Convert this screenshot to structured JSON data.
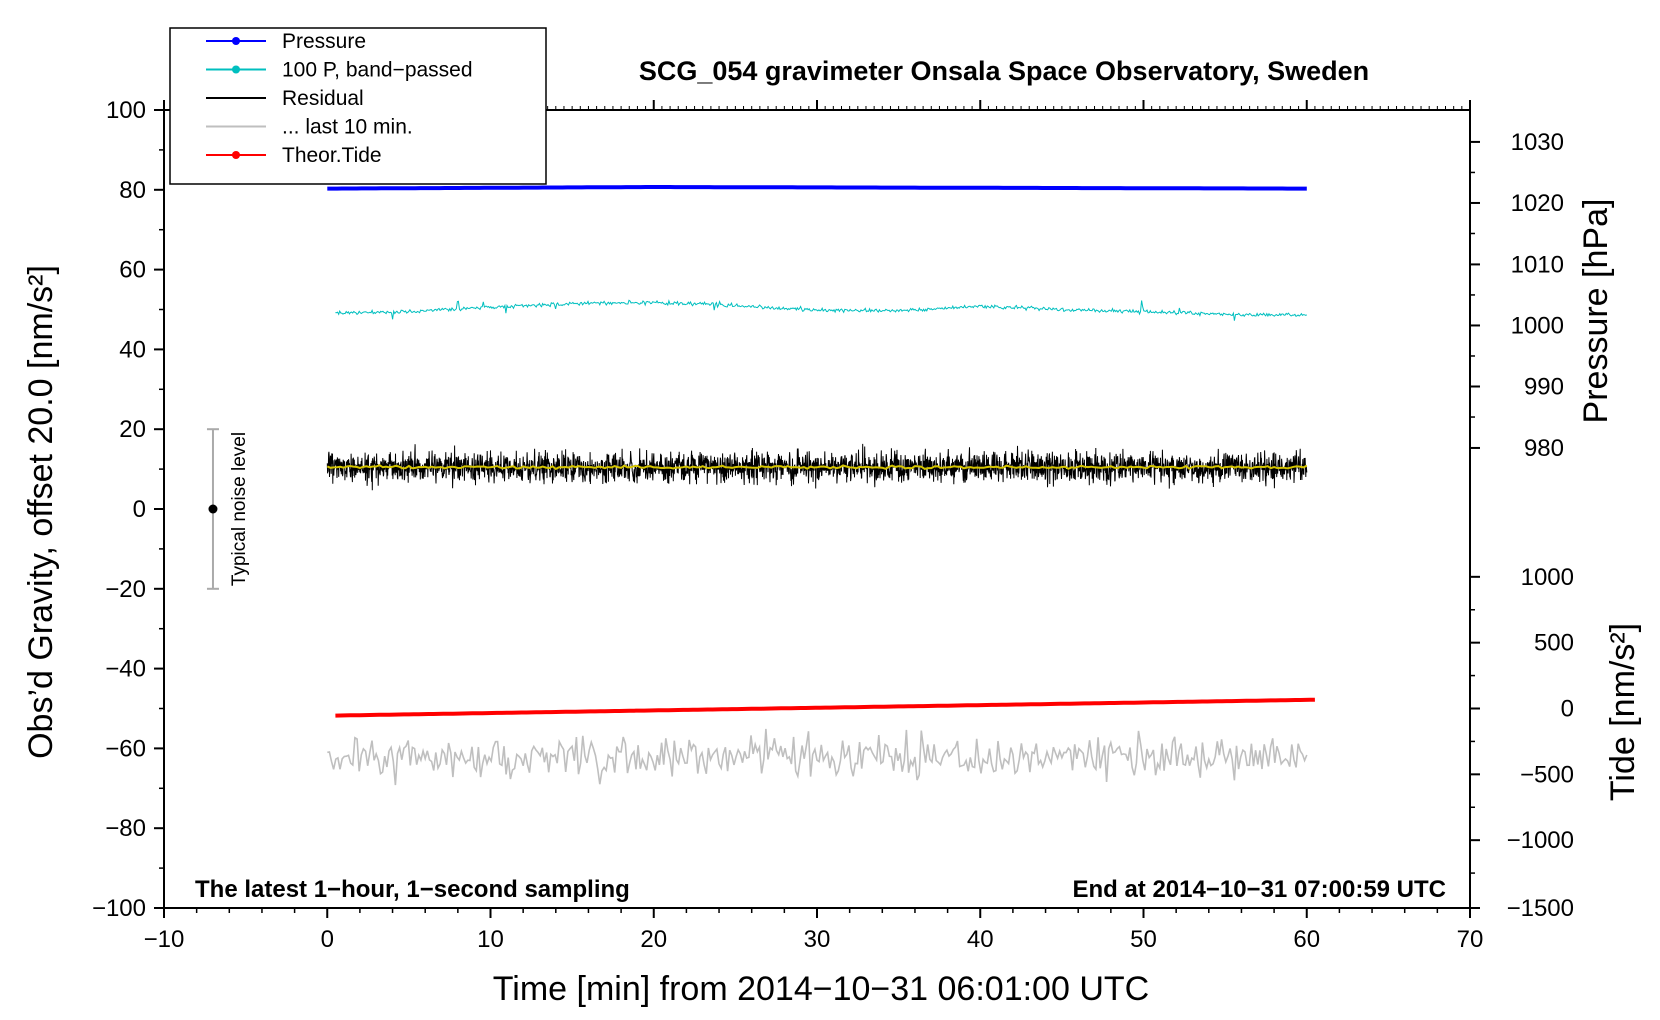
{
  "chart_data": {
    "type": "line",
    "title": "SCG_054 gravimeter Onsala Space Observatory, Sweden",
    "xlabel": "Time [min] from 2014−10−31 06:01:00 UTC",
    "ylabel_left": "Obs’d Gravity, offset 20.0 [nm/s²]",
    "ylabel_right_pressure": "Pressure [hPa]",
    "ylabel_right_tide": "Tide [nm/s²]",
    "footer_left": "The latest 1−hour, 1−second sampling",
    "footer_right": "End at 2014−10−31 07:00:59 UTC",
    "noise_label": "Typical noise level",
    "noise_bar": {
      "x": -7,
      "center": 0,
      "low": -20,
      "high": 20
    },
    "xlim": [
      -10,
      70
    ],
    "ylim": [
      -100,
      100
    ],
    "x_ticks": [
      -10,
      0,
      10,
      20,
      30,
      40,
      50,
      60,
      70
    ],
    "x_tick_labels": [
      "−10",
      "0",
      "10",
      "20",
      "30",
      "40",
      "50",
      "60",
      "70"
    ],
    "y_ticks": [
      -100,
      -80,
      -60,
      -40,
      -20,
      0,
      20,
      40,
      60,
      80,
      100
    ],
    "y_tick_labels": [
      "−100",
      "−80",
      "−60",
      "−40",
      "−20",
      "0",
      "20",
      "40",
      "60",
      "80",
      "100"
    ],
    "pressure_ticks": [
      {
        "label": "1030",
        "y": 92
      },
      {
        "label": "1020",
        "y": 76.7
      },
      {
        "label": "1010",
        "y": 61.3
      },
      {
        "label": "1000",
        "y": 46
      },
      {
        "label": "990",
        "y": 30.7
      },
      {
        "label": "980",
        "y": 15.3
      }
    ],
    "tide_ticks": [
      {
        "label": "1000",
        "y": -17
      },
      {
        "label": "500",
        "y": -33.5
      },
      {
        "label": "0",
        "y": -50
      },
      {
        "label": "−500",
        "y": -66.5
      },
      {
        "label": "−1000",
        "y": -83
      },
      {
        "label": "−1500",
        "y": -100
      }
    ],
    "legend": [
      {
        "label": "Pressure",
        "color": "#0000ff",
        "marker": true
      },
      {
        "label": "100 P, band−passed",
        "color": "#00bfbf",
        "marker": true
      },
      {
        "label": "Residual",
        "color": "#000000",
        "marker": false
      },
      {
        "label": "... last 10 min.",
        "color": "#bfbfbf",
        "marker": false
      },
      {
        "label": "Theor.Tide",
        "color": "#ff0000",
        "marker": true
      }
    ],
    "series": [
      {
        "name": "Pressure",
        "color": "#0000ff",
        "x": [
          0,
          10,
          20,
          30,
          40,
          50,
          60
        ],
        "values": [
          80.3,
          80.5,
          80.7,
          80.6,
          80.5,
          80.4,
          80.3
        ]
      },
      {
        "name": "100 P, band−passed",
        "color": "#00bfbf",
        "x": [
          0,
          5,
          10,
          15,
          20,
          25,
          30,
          35,
          40,
          45,
          50,
          55,
          60
        ],
        "values": [
          49,
          49.5,
          50.5,
          51.5,
          51.8,
          51,
          49.8,
          49.7,
          50.8,
          50,
          49.5,
          48.8,
          48.5
        ]
      },
      {
        "name": "Residual",
        "color": "#000000",
        "x": [
          0,
          60
        ],
        "values": [
          10.5,
          10.5
        ],
        "range": [
          -3,
          23
        ]
      },
      {
        "name": "Residual smoothed",
        "color": "#d4c400",
        "x": [
          0,
          60
        ],
        "values": [
          10.5,
          10.5
        ]
      },
      {
        "name": "... last 10 min.",
        "color": "#bfbfbf",
        "x": [
          0,
          60
        ],
        "values": [
          -62,
          -62
        ],
        "range": [
          -74,
          -52
        ]
      },
      {
        "name": "Theor.Tide",
        "color": "#ff0000",
        "x": [
          0,
          60.5
        ],
        "values": [
          -51.8,
          -47.8
        ]
      }
    ]
  }
}
